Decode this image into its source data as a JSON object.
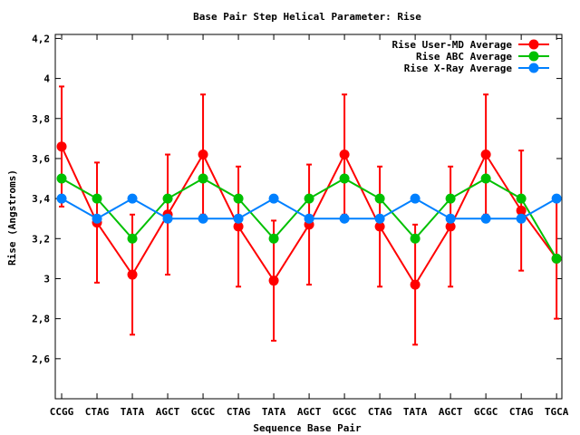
{
  "chart_data": {
    "type": "line",
    "title": "Base Pair Step Helical Parameter: Rise",
    "xlabel": "Sequence Base Pair",
    "ylabel": "Rise (Angstroms)",
    "ylim": [
      2.4,
      4.22
    ],
    "yticks": [
      "2,6",
      "2,8",
      "3",
      "3,2",
      "3,4",
      "3,6",
      "3,8",
      "4",
      "4,2"
    ],
    "ytick_values": [
      2.6,
      2.8,
      3.0,
      3.2,
      3.4,
      3.6,
      3.8,
      4.0,
      4.2
    ],
    "categories": [
      "CCGG",
      "CTAG",
      "TATA",
      "AGCT",
      "GCGC",
      "CTAG",
      "TATA",
      "AGCT",
      "GCGC",
      "CTAG",
      "TATA",
      "AGCT",
      "GCGC",
      "CTAG",
      "TGCA"
    ],
    "legend_position": "top-right",
    "series": [
      {
        "name": "Rise User-MD Average",
        "color": "#ff0000",
        "values": [
          3.66,
          3.28,
          3.02,
          3.32,
          3.62,
          3.26,
          2.99,
          3.27,
          3.62,
          3.26,
          2.97,
          3.26,
          3.62,
          3.34,
          3.1
        ],
        "error": [
          0.3,
          0.3,
          0.3,
          0.3,
          0.3,
          0.3,
          0.3,
          0.3,
          0.3,
          0.3,
          0.3,
          0.3,
          0.3,
          0.3,
          0.3
        ]
      },
      {
        "name": "Rise ABC Average",
        "color": "#00c000",
        "values": [
          3.5,
          3.4,
          3.2,
          3.4,
          3.5,
          3.4,
          3.2,
          3.4,
          3.5,
          3.4,
          3.2,
          3.4,
          3.5,
          3.4,
          3.1
        ]
      },
      {
        "name": "Rise X-Ray Average",
        "color": "#0080ff",
        "values": [
          3.4,
          3.3,
          3.4,
          3.3,
          3.3,
          3.3,
          3.4,
          3.3,
          3.3,
          3.3,
          3.4,
          3.3,
          3.3,
          3.3,
          3.4
        ]
      }
    ]
  }
}
